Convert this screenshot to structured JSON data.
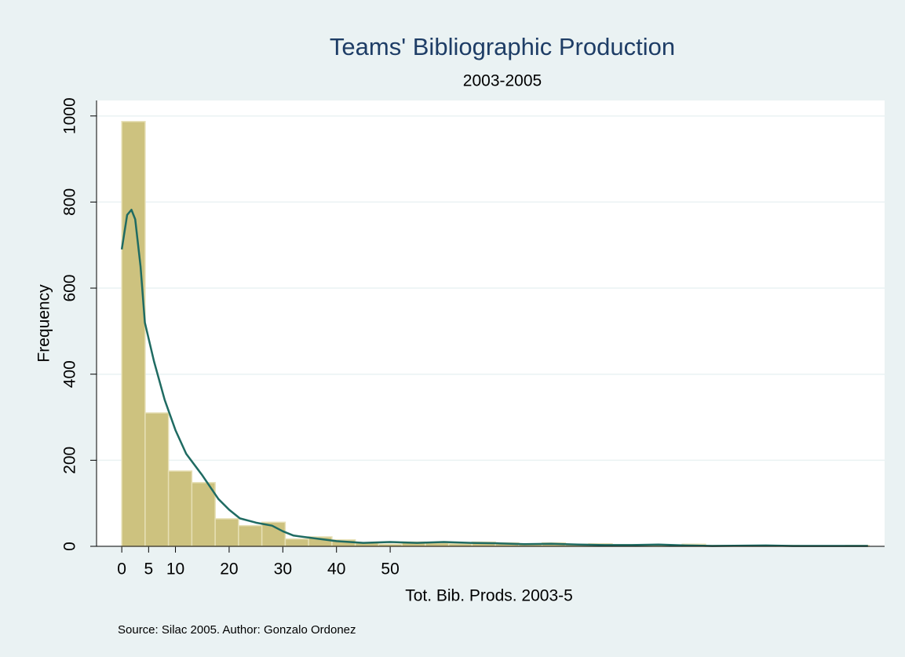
{
  "chart_data": {
    "type": "histogram",
    "title": "Teams' Bibliographic Production",
    "subtitle": "2003-2005",
    "xlabel": "Tot. Bib. Prods. 2003-5",
    "ylabel": "Frequency",
    "note": "Source: Silac 2005. Author: Gonzalo Ordonez",
    "bins": [
      0,
      4.35,
      8.7,
      13.05,
      17.4,
      21.75,
      26.1,
      30.45,
      34.8,
      39.15,
      43.5,
      47.85,
      52.2,
      56.55,
      60.9,
      65.25,
      69.6,
      73.95,
      78.3,
      82.65,
      87,
      91.35,
      95.7,
      100.05,
      104.4,
      108.75,
      113.1,
      117.45,
      121.8,
      126.15,
      130.5,
      134.85,
      139.2
    ],
    "values": [
      987,
      310,
      175,
      148,
      64,
      48,
      56,
      17,
      22,
      15,
      8,
      5,
      10,
      8,
      6,
      10,
      8,
      6,
      8,
      5,
      6,
      4,
      3,
      3,
      5,
      2,
      1,
      2,
      2,
      1,
      1,
      2
    ],
    "color": "#cdc27f",
    "density": {
      "color": "#1f6b62",
      "x": [
        0,
        1,
        1.8,
        2.5,
        3.5,
        4.3,
        6,
        8,
        10,
        12,
        15,
        18,
        20,
        22,
        25,
        28,
        30,
        32,
        35,
        40,
        45,
        50,
        55,
        60,
        65,
        70,
        75,
        80,
        85,
        90,
        95,
        100,
        105,
        110,
        120,
        125,
        130,
        139
      ],
      "values": [
        690,
        770,
        782,
        760,
        650,
        520,
        430,
        340,
        270,
        215,
        165,
        110,
        85,
        65,
        55,
        48,
        35,
        25,
        20,
        12,
        8,
        10,
        8,
        10,
        8,
        7,
        5,
        6,
        4,
        3,
        3,
        4,
        2,
        1,
        2,
        1,
        1,
        1
      ]
    },
    "xlim": [
      -4.7,
      142.1
    ],
    "ylim": [
      0,
      1036
    ],
    "xticks": [
      0,
      5,
      10,
      20,
      30,
      40,
      50
    ],
    "yticks": [
      0,
      200,
      400,
      600,
      800,
      1000
    ],
    "grid": true
  }
}
